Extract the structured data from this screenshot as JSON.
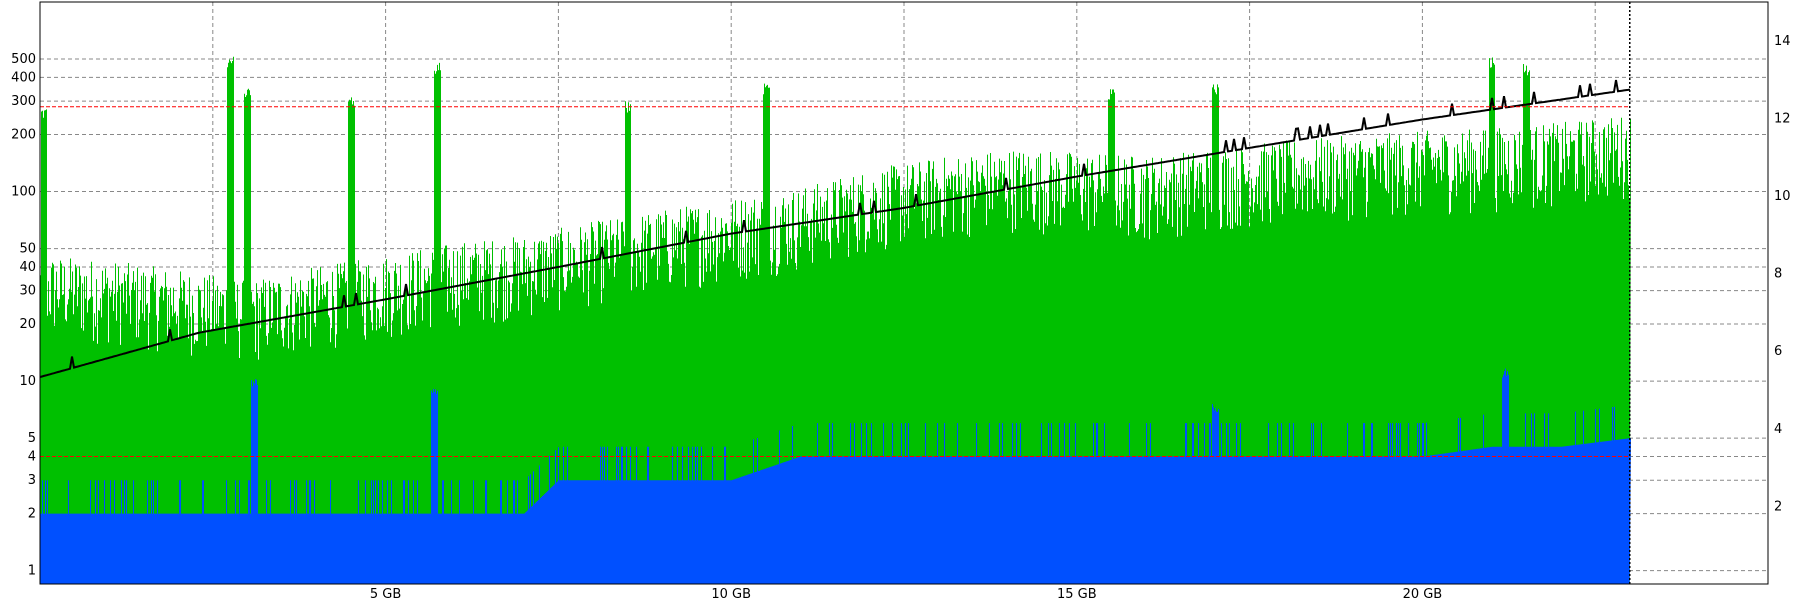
{
  "chart_data": {
    "type": "area",
    "title": "",
    "xlabel": "",
    "ylabel": "",
    "x_unit": "GB",
    "xlim": [
      0,
      25
    ],
    "data_end_x": 23,
    "x_ticks": [
      {
        "value": 5,
        "label": "5 GB"
      },
      {
        "value": 10,
        "label": "10 GB"
      },
      {
        "value": 15,
        "label": "15 GB"
      },
      {
        "value": 20,
        "label": "20 GB"
      }
    ],
    "x_gridlines": [
      2.5,
      5,
      7.5,
      10,
      12.5,
      15,
      17.5,
      20,
      22.5
    ],
    "left_axis": {
      "scale": "log",
      "ylim": [
        0.85,
        1000
      ],
      "ticks": [
        1,
        2,
        3,
        4,
        5,
        10,
        20,
        30,
        40,
        50,
        100,
        200,
        300,
        400,
        500
      ],
      "tick_labels": [
        "1",
        "2",
        "3",
        "4",
        "5",
        "10",
        "20",
        "30",
        "40",
        "50",
        "100",
        "200",
        "300",
        "400",
        "500"
      ]
    },
    "right_axis": {
      "scale": "linear",
      "ylim": [
        0,
        15
      ],
      "ticks": [
        2,
        4,
        6,
        8,
        10,
        12,
        14
      ],
      "tick_labels": [
        "2",
        "4",
        "6",
        "8",
        "10",
        "12",
        "14"
      ]
    },
    "grid": true,
    "reference_lines": [
      {
        "axis": "left",
        "value": 280,
        "color": "#ff0000",
        "style": "dashed"
      },
      {
        "axis": "left",
        "value": 4,
        "color": "#ff0000",
        "style": "dashed"
      }
    ],
    "series": [
      {
        "axis": "left",
        "kind": "area",
        "color": "#00c000",
        "x": [
          0,
          1,
          2,
          3,
          4,
          5,
          6,
          7,
          8,
          9,
          10,
          11,
          12,
          13,
          14,
          15,
          16,
          17,
          18,
          19,
          20,
          21,
          22,
          23
        ],
        "values": [
          30,
          28,
          25,
          22,
          26,
          30,
          35,
          38,
          45,
          52,
          60,
          68,
          85,
          98,
          110,
          105,
          100,
          110,
          120,
          128,
          135,
          140,
          150,
          165
        ],
        "spikes": [
          {
            "x": 0.05,
            "value": 280
          },
          {
            "x": 2.75,
            "value": 520
          },
          {
            "x": 3.0,
            "value": 360
          },
          {
            "x": 4.5,
            "value": 330
          },
          {
            "x": 5.75,
            "value": 480
          },
          {
            "x": 8.5,
            "value": 300
          },
          {
            "x": 10.5,
            "value": 380
          },
          {
            "x": 15.5,
            "value": 350
          },
          {
            "x": 17.0,
            "value": 380
          },
          {
            "x": 21.0,
            "value": 520
          },
          {
            "x": 21.5,
            "value": 480
          }
        ]
      },
      {
        "axis": "left",
        "kind": "area",
        "color": "#0050ff",
        "x": [
          0,
          1,
          2,
          3,
          4,
          5,
          6,
          7,
          7.5,
          8,
          9,
          10,
          11,
          12,
          13,
          14,
          15,
          16,
          17,
          18,
          19,
          20,
          21,
          22,
          23
        ],
        "values": [
          2,
          2,
          2,
          2,
          2,
          2,
          2,
          2,
          3,
          3,
          3,
          3,
          4,
          4,
          4,
          4,
          4,
          4,
          4,
          4,
          4,
          4,
          4.5,
          4.5,
          5
        ],
        "spikes": [
          {
            "x": 3.1,
            "value": 11
          },
          {
            "x": 5.7,
            "value": 10
          },
          {
            "x": 17.0,
            "value": 8
          },
          {
            "x": 21.2,
            "value": 12
          }
        ]
      },
      {
        "axis": "left",
        "kind": "line",
        "color": "#000000",
        "x": [
          0,
          2.3,
          5,
          7.5,
          10,
          12.5,
          15,
          17.5,
          20,
          23
        ],
        "values": [
          10.5,
          18,
          27,
          40,
          60,
          82,
          120,
          170,
          240,
          345
        ]
      }
    ]
  }
}
